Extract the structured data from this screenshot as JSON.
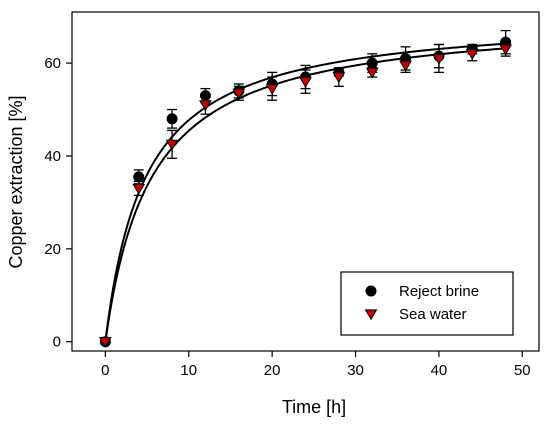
{
  "chart_data": {
    "type": "scatter",
    "xlabel": "Time [h]",
    "ylabel": "Copper extraction [%]",
    "xlim": [
      -4,
      52
    ],
    "ylim": [
      -2,
      71
    ],
    "xticks": [
      0,
      10,
      20,
      30,
      40,
      50
    ],
    "yticks": [
      0,
      20,
      40,
      60
    ],
    "grid": false,
    "legend_position": "bottom-right",
    "series": [
      {
        "name": "Reject brine",
        "marker": "circle",
        "color": "#000000",
        "x": [
          0,
          4,
          8,
          12,
          16,
          20,
          24,
          28,
          32,
          36,
          40,
          44,
          48
        ],
        "y": [
          0,
          35.5,
          48,
          53,
          54,
          55.5,
          57,
          58,
          60,
          61,
          61.5,
          63,
          64.5
        ],
        "err": [
          0,
          1.5,
          2,
          1.5,
          1.5,
          2.5,
          2.5,
          0.8,
          2,
          2.5,
          2.5,
          1,
          2.5
        ]
      },
      {
        "name": "Sea water",
        "marker": "triangle-down",
        "color": "#cc0000",
        "x": [
          0,
          4,
          8,
          12,
          16,
          20,
          24,
          28,
          32,
          36,
          40,
          44,
          48
        ],
        "y": [
          0,
          33,
          42.5,
          51,
          53.5,
          54.5,
          56,
          57,
          58,
          59.5,
          61,
          62,
          63
        ],
        "err": [
          0,
          1.5,
          3,
          2,
          1.5,
          2.5,
          2.5,
          2,
          1,
          1.5,
          3,
          1.5,
          1.5
        ]
      }
    ],
    "fits": [
      {
        "series": "Reject brine",
        "x_half": 4.8,
        "y_max": 70.6
      },
      {
        "series": "Sea water",
        "x_half": 5.5,
        "y_max": 70.4
      }
    ]
  }
}
